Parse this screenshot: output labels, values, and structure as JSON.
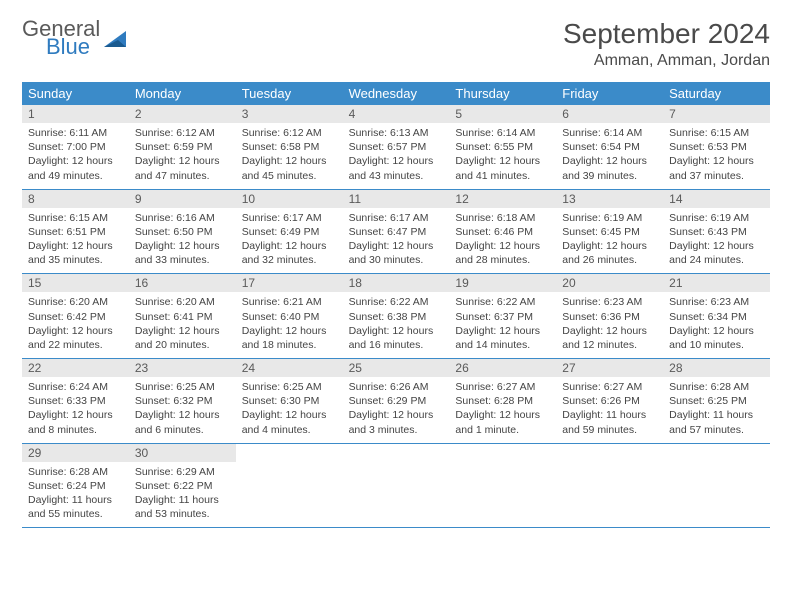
{
  "logo": {
    "general": "General",
    "blue": "Blue"
  },
  "title": "September 2024",
  "location": "Amman, Amman, Jordan",
  "colors": {
    "header_bg": "#3b8bc9",
    "header_text": "#ffffff",
    "daynum_bg": "#e8e8e8",
    "daynum_text": "#5a5a5a",
    "body_text": "#444444",
    "title_text": "#4a4a4a",
    "logo_gray": "#5a5a5a",
    "logo_blue": "#2f7bbf",
    "rule": "#3b8bc9"
  },
  "dayNames": [
    "Sunday",
    "Monday",
    "Tuesday",
    "Wednesday",
    "Thursday",
    "Friday",
    "Saturday"
  ],
  "weeks": [
    [
      {
        "n": "1",
        "sunrise": "6:11 AM",
        "sunset": "7:00 PM",
        "dl1": "Daylight: 12 hours",
        "dl2": "and 49 minutes."
      },
      {
        "n": "2",
        "sunrise": "6:12 AM",
        "sunset": "6:59 PM",
        "dl1": "Daylight: 12 hours",
        "dl2": "and 47 minutes."
      },
      {
        "n": "3",
        "sunrise": "6:12 AM",
        "sunset": "6:58 PM",
        "dl1": "Daylight: 12 hours",
        "dl2": "and 45 minutes."
      },
      {
        "n": "4",
        "sunrise": "6:13 AM",
        "sunset": "6:57 PM",
        "dl1": "Daylight: 12 hours",
        "dl2": "and 43 minutes."
      },
      {
        "n": "5",
        "sunrise": "6:14 AM",
        "sunset": "6:55 PM",
        "dl1": "Daylight: 12 hours",
        "dl2": "and 41 minutes."
      },
      {
        "n": "6",
        "sunrise": "6:14 AM",
        "sunset": "6:54 PM",
        "dl1": "Daylight: 12 hours",
        "dl2": "and 39 minutes."
      },
      {
        "n": "7",
        "sunrise": "6:15 AM",
        "sunset": "6:53 PM",
        "dl1": "Daylight: 12 hours",
        "dl2": "and 37 minutes."
      }
    ],
    [
      {
        "n": "8",
        "sunrise": "6:15 AM",
        "sunset": "6:51 PM",
        "dl1": "Daylight: 12 hours",
        "dl2": "and 35 minutes."
      },
      {
        "n": "9",
        "sunrise": "6:16 AM",
        "sunset": "6:50 PM",
        "dl1": "Daylight: 12 hours",
        "dl2": "and 33 minutes."
      },
      {
        "n": "10",
        "sunrise": "6:17 AM",
        "sunset": "6:49 PM",
        "dl1": "Daylight: 12 hours",
        "dl2": "and 32 minutes."
      },
      {
        "n": "11",
        "sunrise": "6:17 AM",
        "sunset": "6:47 PM",
        "dl1": "Daylight: 12 hours",
        "dl2": "and 30 minutes."
      },
      {
        "n": "12",
        "sunrise": "6:18 AM",
        "sunset": "6:46 PM",
        "dl1": "Daylight: 12 hours",
        "dl2": "and 28 minutes."
      },
      {
        "n": "13",
        "sunrise": "6:19 AM",
        "sunset": "6:45 PM",
        "dl1": "Daylight: 12 hours",
        "dl2": "and 26 minutes."
      },
      {
        "n": "14",
        "sunrise": "6:19 AM",
        "sunset": "6:43 PM",
        "dl1": "Daylight: 12 hours",
        "dl2": "and 24 minutes."
      }
    ],
    [
      {
        "n": "15",
        "sunrise": "6:20 AM",
        "sunset": "6:42 PM",
        "dl1": "Daylight: 12 hours",
        "dl2": "and 22 minutes."
      },
      {
        "n": "16",
        "sunrise": "6:20 AM",
        "sunset": "6:41 PM",
        "dl1": "Daylight: 12 hours",
        "dl2": "and 20 minutes."
      },
      {
        "n": "17",
        "sunrise": "6:21 AM",
        "sunset": "6:40 PM",
        "dl1": "Daylight: 12 hours",
        "dl2": "and 18 minutes."
      },
      {
        "n": "18",
        "sunrise": "6:22 AM",
        "sunset": "6:38 PM",
        "dl1": "Daylight: 12 hours",
        "dl2": "and 16 minutes."
      },
      {
        "n": "19",
        "sunrise": "6:22 AM",
        "sunset": "6:37 PM",
        "dl1": "Daylight: 12 hours",
        "dl2": "and 14 minutes."
      },
      {
        "n": "20",
        "sunrise": "6:23 AM",
        "sunset": "6:36 PM",
        "dl1": "Daylight: 12 hours",
        "dl2": "and 12 minutes."
      },
      {
        "n": "21",
        "sunrise": "6:23 AM",
        "sunset": "6:34 PM",
        "dl1": "Daylight: 12 hours",
        "dl2": "and 10 minutes."
      }
    ],
    [
      {
        "n": "22",
        "sunrise": "6:24 AM",
        "sunset": "6:33 PM",
        "dl1": "Daylight: 12 hours",
        "dl2": "and 8 minutes."
      },
      {
        "n": "23",
        "sunrise": "6:25 AM",
        "sunset": "6:32 PM",
        "dl1": "Daylight: 12 hours",
        "dl2": "and 6 minutes."
      },
      {
        "n": "24",
        "sunrise": "6:25 AM",
        "sunset": "6:30 PM",
        "dl1": "Daylight: 12 hours",
        "dl2": "and 4 minutes."
      },
      {
        "n": "25",
        "sunrise": "6:26 AM",
        "sunset": "6:29 PM",
        "dl1": "Daylight: 12 hours",
        "dl2": "and 3 minutes."
      },
      {
        "n": "26",
        "sunrise": "6:27 AM",
        "sunset": "6:28 PM",
        "dl1": "Daylight: 12 hours",
        "dl2": "and 1 minute."
      },
      {
        "n": "27",
        "sunrise": "6:27 AM",
        "sunset": "6:26 PM",
        "dl1": "Daylight: 11 hours",
        "dl2": "and 59 minutes."
      },
      {
        "n": "28",
        "sunrise": "6:28 AM",
        "sunset": "6:25 PM",
        "dl1": "Daylight: 11 hours",
        "dl2": "and 57 minutes."
      }
    ],
    [
      {
        "n": "29",
        "sunrise": "6:28 AM",
        "sunset": "6:24 PM",
        "dl1": "Daylight: 11 hours",
        "dl2": "and 55 minutes."
      },
      {
        "n": "30",
        "sunrise": "6:29 AM",
        "sunset": "6:22 PM",
        "dl1": "Daylight: 11 hours",
        "dl2": "and 53 minutes."
      },
      null,
      null,
      null,
      null,
      null
    ]
  ]
}
